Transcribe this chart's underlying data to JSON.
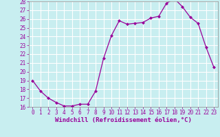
{
  "x": [
    0,
    1,
    2,
    3,
    4,
    5,
    6,
    7,
    8,
    9,
    10,
    11,
    12,
    13,
    14,
    15,
    16,
    17,
    18,
    19,
    20,
    21,
    22,
    23
  ],
  "y": [
    19.0,
    17.8,
    17.0,
    16.5,
    16.1,
    16.1,
    16.3,
    16.3,
    17.8,
    21.5,
    24.1,
    25.8,
    25.4,
    25.5,
    25.6,
    26.1,
    26.3,
    27.8,
    28.3,
    27.4,
    26.2,
    25.5,
    22.8,
    20.5
  ],
  "line_color": "#990099",
  "marker": "D",
  "marker_size": 2.0,
  "bg_color": "#c8eef0",
  "grid_color": "#aacccc",
  "ylim": [
    16,
    28
  ],
  "xlim": [
    -0.5,
    23.5
  ],
  "yticks": [
    16,
    17,
    18,
    19,
    20,
    21,
    22,
    23,
    24,
    25,
    26,
    27,
    28
  ],
  "xtick_labels": [
    "0",
    "1",
    "2",
    "3",
    "4",
    "5",
    "6",
    "7",
    "8",
    "9",
    "10",
    "11",
    "12",
    "13",
    "14",
    "15",
    "16",
    "17",
    "18",
    "19",
    "20",
    "21",
    "22",
    "23"
  ],
  "xlabel": "Windchill (Refroidissement éolien,°C)",
  "tick_fontsize": 5.5,
  "xlabel_fontsize": 6.5,
  "line_width": 0.9
}
